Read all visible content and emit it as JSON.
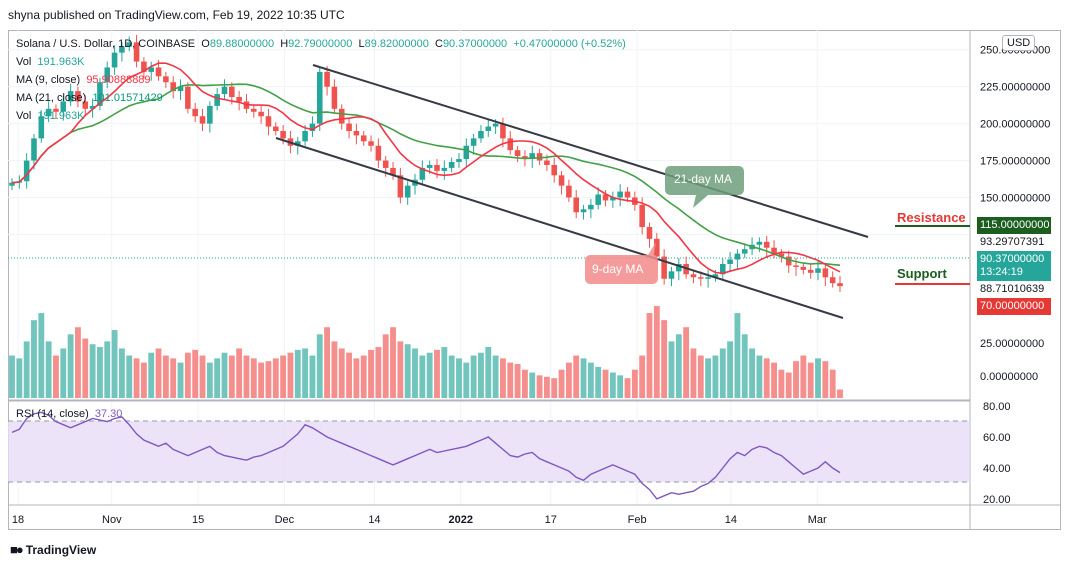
{
  "publisher": "shyna published on TradingView.com, Feb 19, 2022 10:35 UTC",
  "footer": {
    "logo_text": "TradingView",
    "logo_icon": "tradingview-logo-icon"
  },
  "legend": {
    "symbol": "Solana / U.S. Dollar, 1D, COINBASE",
    "open_label": "O",
    "open": "89.88000000",
    "high_label": "H",
    "high": "92.79000000",
    "low_label": "L",
    "low": "89.82000000",
    "close_label": "C",
    "close": "90.37000000",
    "change": "+0.47000000 (+0.52%)",
    "vol_label": "Vol",
    "vol_value": "191.963K",
    "ma9_label": "MA (9, close)",
    "ma9_value": "95.90888889",
    "ma21_label": "MA (21, close)",
    "ma21_value": "101.01571429",
    "vol2_label": "Vol",
    "vol2_value": "191.963K"
  },
  "rsi_legend": {
    "label": "RSI (14, close)",
    "value": "37.30"
  },
  "currency": "USD",
  "price_tags": {
    "resistance_level": "115.00000000",
    "ma21_level": "93.29707391",
    "current_price": "90.37000000",
    "countdown": "13:24:19",
    "ma9_level": "88.71010639",
    "support_level": "70.00000000"
  },
  "annotations": {
    "resistance": "Resistance",
    "support": "Support",
    "ma21": "21-day MA",
    "ma9": "9-day MA"
  },
  "colors": {
    "up": "#26a69a",
    "down": "#ef5350",
    "ma9": "#f23645",
    "ma21": "#43a047",
    "rsi": "#7e57c2",
    "resistance": "#1b5e20",
    "support_line": "#e53935",
    "channel": "#363a45"
  },
  "chart_data": [
    {
      "type": "candlestick",
      "title": "Solana / U.S. Dollar, 1D, COINBASE",
      "y_axis_ticks": [
        "250.00000000",
        "225.00000000",
        "200.00000000",
        "175.00000000",
        "150.00000000",
        "125.00000000"
      ],
      "x_axis_ticks": [
        "18",
        "Nov",
        "15",
        "Dec",
        "14",
        "2022",
        "17",
        "Feb",
        "14",
        "Mar"
      ],
      "ylim": [
        40,
        262
      ],
      "price": [
        160,
        161,
        175,
        190,
        205,
        210,
        208,
        215,
        222,
        215,
        210,
        212,
        228,
        238,
        248,
        252,
        255,
        242,
        235,
        238,
        232,
        228,
        222,
        225,
        210,
        205,
        200,
        212,
        220,
        225,
        218,
        215,
        210,
        208,
        205,
        198,
        195,
        190,
        185,
        188,
        195,
        200,
        235,
        225,
        210,
        200,
        195,
        192,
        188,
        185,
        175,
        170,
        165,
        150,
        158,
        162,
        170,
        172,
        168,
        170,
        174,
        176,
        185,
        190,
        195,
        198,
        200,
        190,
        182,
        178,
        176,
        180,
        175,
        172,
        165,
        158,
        150,
        140,
        142,
        145,
        152,
        148,
        150,
        154,
        150,
        145,
        130,
        122,
        110,
        95,
        100,
        105,
        98,
        96,
        95,
        96,
        98,
        105,
        108,
        112,
        115,
        118,
        120,
        116,
        112,
        110,
        104,
        103,
        101,
        99,
        102,
        96,
        92,
        90
      ],
      "volume": [
        30,
        28,
        40,
        55,
        60,
        40,
        30,
        35,
        45,
        50,
        42,
        38,
        36,
        40,
        48,
        35,
        30,
        28,
        25,
        32,
        35,
        30,
        28,
        25,
        32,
        34,
        30,
        25,
        28,
        32,
        30,
        35,
        30,
        28,
        25,
        26,
        28,
        30,
        32,
        34,
        35,
        30,
        45,
        50,
        40,
        35,
        32,
        28,
        30,
        34,
        36,
        45,
        50,
        40,
        38,
        35,
        30,
        32,
        34,
        36,
        30,
        28,
        25,
        30,
        32,
        36,
        30,
        28,
        25,
        24,
        20,
        18,
        16,
        15,
        14,
        20,
        25,
        30,
        28,
        25,
        22,
        20,
        18,
        16,
        14,
        20,
        30,
        60,
        65,
        55,
        40,
        45,
        50,
        35,
        30,
        28,
        30,
        35,
        40,
        60,
        45,
        35,
        30,
        28,
        25,
        20,
        18,
        26,
        30,
        25,
        28,
        26,
        20,
        6
      ],
      "volume_axis_ticks": [
        "25.00000000",
        "0.00000000"
      ],
      "rsi": [
        63,
        65,
        72,
        75,
        76,
        74,
        70,
        68,
        66,
        68,
        70,
        72,
        71,
        70,
        72,
        73,
        68,
        62,
        58,
        56,
        54,
        56,
        52,
        50,
        48,
        50,
        52,
        54,
        50,
        48,
        47,
        46,
        45,
        47,
        48,
        50,
        52,
        54,
        58,
        62,
        68,
        66,
        63,
        60,
        58,
        56,
        54,
        52,
        50,
        48,
        46,
        44,
        42,
        44,
        46,
        48,
        50,
        52,
        50,
        51,
        52,
        53,
        54,
        56,
        58,
        60,
        56,
        52,
        48,
        47,
        49,
        50,
        46,
        44,
        42,
        40,
        38,
        34,
        32,
        36,
        38,
        40,
        42,
        40,
        38,
        36,
        30,
        26,
        20,
        22,
        24,
        23,
        24,
        25,
        28,
        30,
        34,
        40,
        46,
        50,
        48,
        52,
        54,
        53,
        50,
        48,
        44,
        40,
        36,
        38,
        40,
        44,
        40,
        37
      ],
      "rsi_axis_ticks": [
        "80.00",
        "60.00",
        "40.00",
        "20.00"
      ],
      "rsi_ylim": [
        18,
        82
      ]
    }
  ]
}
